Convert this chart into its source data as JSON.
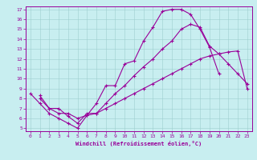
{
  "xlabel": "Windchill (Refroidissement éolien,°C)",
  "bg_color": "#c8eef0",
  "line_color": "#990099",
  "xlim": [
    -0.5,
    23.5
  ],
  "ylim": [
    4.7,
    17.3
  ],
  "xticks": [
    0,
    1,
    2,
    3,
    4,
    5,
    6,
    7,
    8,
    9,
    10,
    11,
    12,
    13,
    14,
    15,
    16,
    17,
    18,
    19,
    20,
    21,
    22,
    23
  ],
  "yticks": [
    5,
    6,
    7,
    8,
    9,
    10,
    11,
    12,
    13,
    14,
    15,
    16,
    17
  ],
  "line1_x": [
    0,
    1,
    2,
    3,
    4,
    5,
    6,
    7,
    8,
    9,
    10,
    11,
    12,
    13,
    14,
    15,
    16,
    17,
    18,
    19,
    20
  ],
  "line1_y": [
    8.5,
    7.5,
    6.5,
    6.0,
    5.5,
    5.0,
    6.3,
    7.5,
    9.3,
    9.3,
    11.5,
    11.8,
    13.8,
    15.2,
    16.8,
    17.0,
    17.0,
    16.5,
    15.0,
    13.2,
    10.5
  ],
  "line2_x": [
    1,
    2,
    3,
    4,
    5,
    6,
    7,
    8,
    9,
    10,
    11,
    12,
    13,
    14,
    15,
    16,
    17,
    18,
    19,
    20,
    21,
    22,
    23
  ],
  "line2_y": [
    8.3,
    7.0,
    7.0,
    6.2,
    5.5,
    6.5,
    6.5,
    7.5,
    8.5,
    9.3,
    10.3,
    11.2,
    12.0,
    13.0,
    13.8,
    15.0,
    15.5,
    15.2,
    13.3,
    12.5,
    11.5,
    10.5,
    9.5
  ],
  "line3_x": [
    1,
    2,
    3,
    4,
    5,
    6,
    7,
    8,
    9,
    10,
    11,
    12,
    13,
    14,
    15,
    16,
    17,
    18,
    19,
    20,
    21,
    22,
    23
  ],
  "line3_y": [
    8.0,
    7.0,
    6.5,
    6.5,
    6.0,
    6.3,
    6.5,
    7.0,
    7.5,
    8.0,
    8.5,
    9.0,
    9.5,
    10.0,
    10.5,
    11.0,
    11.5,
    12.0,
    12.3,
    12.5,
    12.7,
    12.8,
    9.0
  ]
}
